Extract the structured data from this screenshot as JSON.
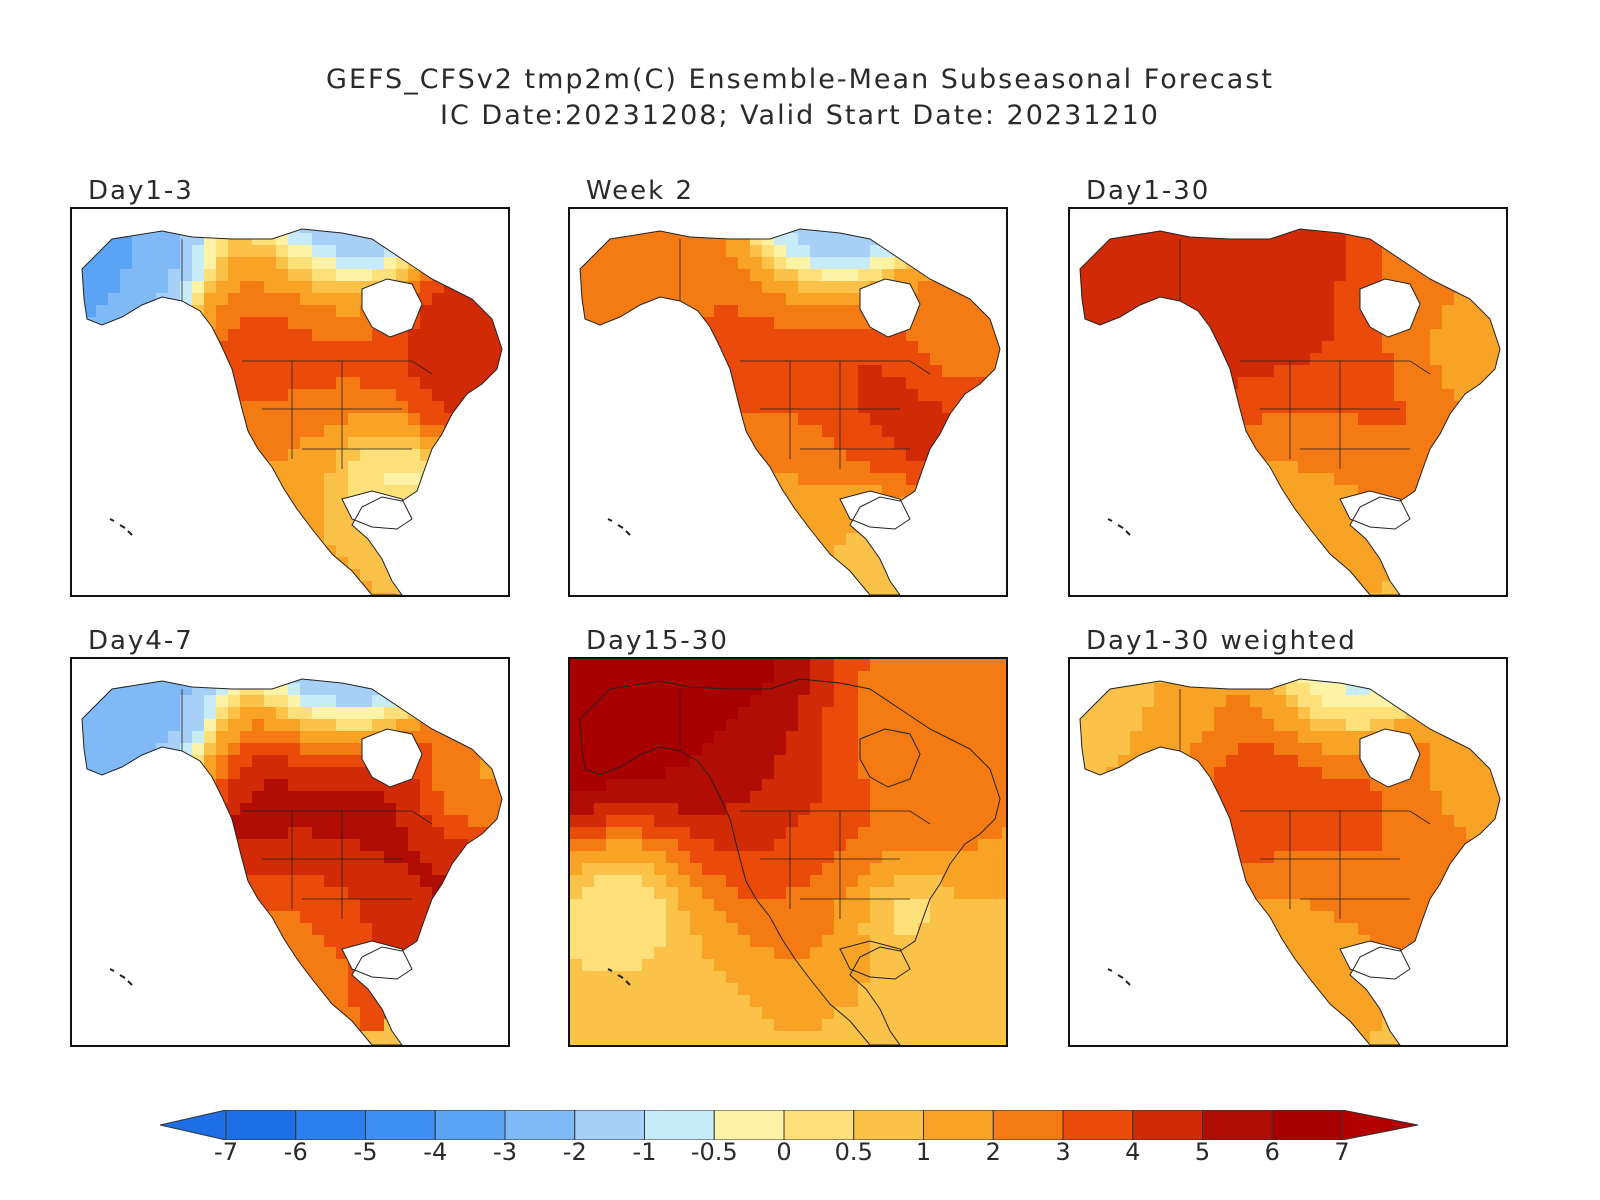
{
  "figure": {
    "title_line1": "GEFS_CFSv2 tmp2m(C) Ensemble-Mean Subseasonal Forecast",
    "title_line2": "IC Date:20231208; Valid Start Date: 20231210"
  },
  "panels": [
    {
      "label": "Day1-3",
      "pattern": "d13"
    },
    {
      "label": "Week 2",
      "pattern": "w2"
    },
    {
      "label": "Day1-30",
      "pattern": "d130"
    },
    {
      "label": "Day4-7",
      "pattern": "d47"
    },
    {
      "label": "Day15-30",
      "pattern": "d1530"
    },
    {
      "label": "Day1-30 weighted",
      "pattern": "d130w"
    }
  ],
  "colorbar": {
    "labels": [
      "-7",
      "-6",
      "-5",
      "-4",
      "-3",
      "-2",
      "-1",
      "-0.5",
      "0",
      "0.5",
      "1",
      "2",
      "3",
      "4",
      "5",
      "6",
      "7"
    ],
    "colors": [
      "#1e6ee6",
      "#2c7fee",
      "#3d8ff2",
      "#5aa3f5",
      "#7fbaf7",
      "#a6d0f7",
      "#c8ecf7",
      "#fdf3a6",
      "#fde07a",
      "#fbc24a",
      "#f8a326",
      "#f47b14",
      "#ea4a0a",
      "#d12a06",
      "#b00d05",
      "#a80000"
    ],
    "low_arrow_color": "#1e6ee6",
    "high_arrow_color": "#b30000"
  }
}
